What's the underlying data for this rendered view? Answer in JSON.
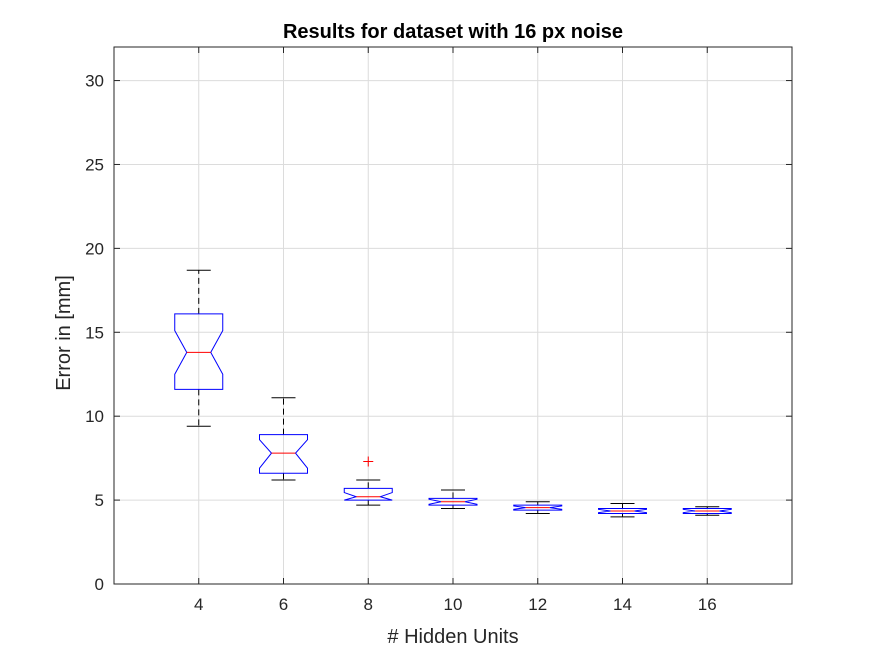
{
  "chart_data": {
    "type": "boxplot",
    "title": "Results for dataset with 16 px noise",
    "xlabel": "# Hidden Units",
    "ylabel": "Error in [mm]",
    "ylim": [
      0,
      32
    ],
    "yticks": [
      0,
      5,
      10,
      15,
      20,
      25,
      30
    ],
    "grid": true,
    "notched": true,
    "categories": [
      "4",
      "6",
      "8",
      "10",
      "12",
      "14",
      "16"
    ],
    "boxes": [
      {
        "category": "4",
        "whisker_low": 9.4,
        "q1": 11.6,
        "median": 13.8,
        "q3": 16.1,
        "whisker_high": 18.7,
        "notch_low": 12.5,
        "notch_high": 15.1,
        "outliers": []
      },
      {
        "category": "6",
        "whisker_low": 6.2,
        "q1": 6.6,
        "median": 7.8,
        "q3": 8.9,
        "whisker_high": 11.1,
        "notch_low": 6.9,
        "notch_high": 8.6,
        "outliers": []
      },
      {
        "category": "8",
        "whisker_low": 4.7,
        "q1": 5.0,
        "median": 5.2,
        "q3": 5.7,
        "whisker_high": 6.2,
        "notch_low": 4.95,
        "notch_high": 5.45,
        "outliers": [
          7.3
        ]
      },
      {
        "category": "10",
        "whisker_low": 4.5,
        "q1": 4.7,
        "median": 4.9,
        "q3": 5.1,
        "whisker_high": 5.6,
        "notch_low": 4.75,
        "notch_high": 5.05,
        "outliers": []
      },
      {
        "category": "12",
        "whisker_low": 4.2,
        "q1": 4.4,
        "median": 4.55,
        "q3": 4.7,
        "whisker_high": 4.9,
        "notch_low": 4.45,
        "notch_high": 4.65,
        "outliers": []
      },
      {
        "category": "14",
        "whisker_low": 4.0,
        "q1": 4.2,
        "median": 4.35,
        "q3": 4.5,
        "whisker_high": 4.8,
        "notch_low": 4.25,
        "notch_high": 4.45,
        "outliers": []
      },
      {
        "category": "16",
        "whisker_low": 4.1,
        "q1": 4.2,
        "median": 4.35,
        "q3": 4.5,
        "whisker_high": 4.6,
        "notch_low": 4.25,
        "notch_high": 4.45,
        "outliers": []
      }
    ],
    "colors": {
      "box": "#0000ff",
      "median": "#ff0000",
      "whisker": "#000000",
      "outlier": "#ff0000",
      "grid": "#dcdcdc",
      "axis": "#262626"
    }
  }
}
